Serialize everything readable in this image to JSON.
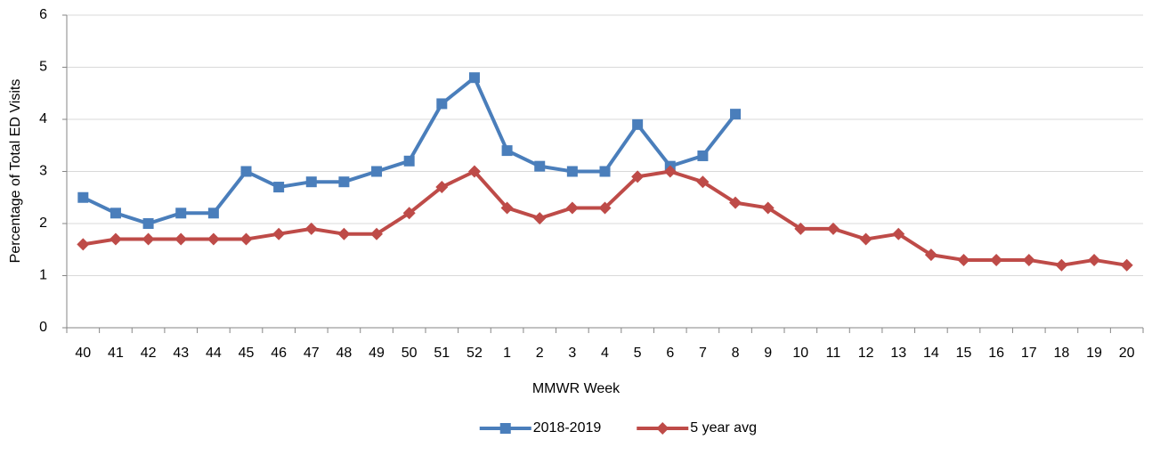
{
  "chart_data": {
    "type": "line",
    "x_label": "MMWR Week",
    "y_label": "Percentage of Total ED Visits",
    "categories": [
      "40",
      "41",
      "42",
      "43",
      "44",
      "45",
      "46",
      "47",
      "48",
      "49",
      "50",
      "51",
      "52",
      "1",
      "2",
      "3",
      "4",
      "5",
      "6",
      "7",
      "8",
      "9",
      "10",
      "11",
      "12",
      "13",
      "14",
      "15",
      "16",
      "17",
      "18",
      "19",
      "20"
    ],
    "series": [
      {
        "name": "2018-2019",
        "color": "#4a7ebb",
        "marker": "square",
        "values": [
          2.5,
          2.2,
          2.0,
          2.2,
          2.2,
          3.0,
          2.7,
          2.8,
          2.8,
          3.0,
          3.2,
          4.3,
          4.8,
          3.4,
          3.1,
          3.0,
          3.0,
          3.9,
          3.1,
          3.3,
          4.1,
          null,
          null,
          null,
          null,
          null,
          null,
          null,
          null,
          null,
          null,
          null,
          null
        ]
      },
      {
        "name": "5 year avg",
        "color": "#be4b48",
        "marker": "diamond",
        "values": [
          1.6,
          1.7,
          1.7,
          1.7,
          1.7,
          1.7,
          1.8,
          1.9,
          1.8,
          1.8,
          2.2,
          2.7,
          3.0,
          2.3,
          2.1,
          2.3,
          2.3,
          2.9,
          3.0,
          2.8,
          2.4,
          2.3,
          1.9,
          1.9,
          1.7,
          1.8,
          1.4,
          1.3,
          1.3,
          1.3,
          1.2,
          1.3,
          1.2
        ]
      }
    ],
    "ylim": [
      0,
      6
    ],
    "yticks": [
      0,
      1,
      2,
      3,
      4,
      5,
      6
    ],
    "grid": true,
    "legend": "bottom"
  }
}
